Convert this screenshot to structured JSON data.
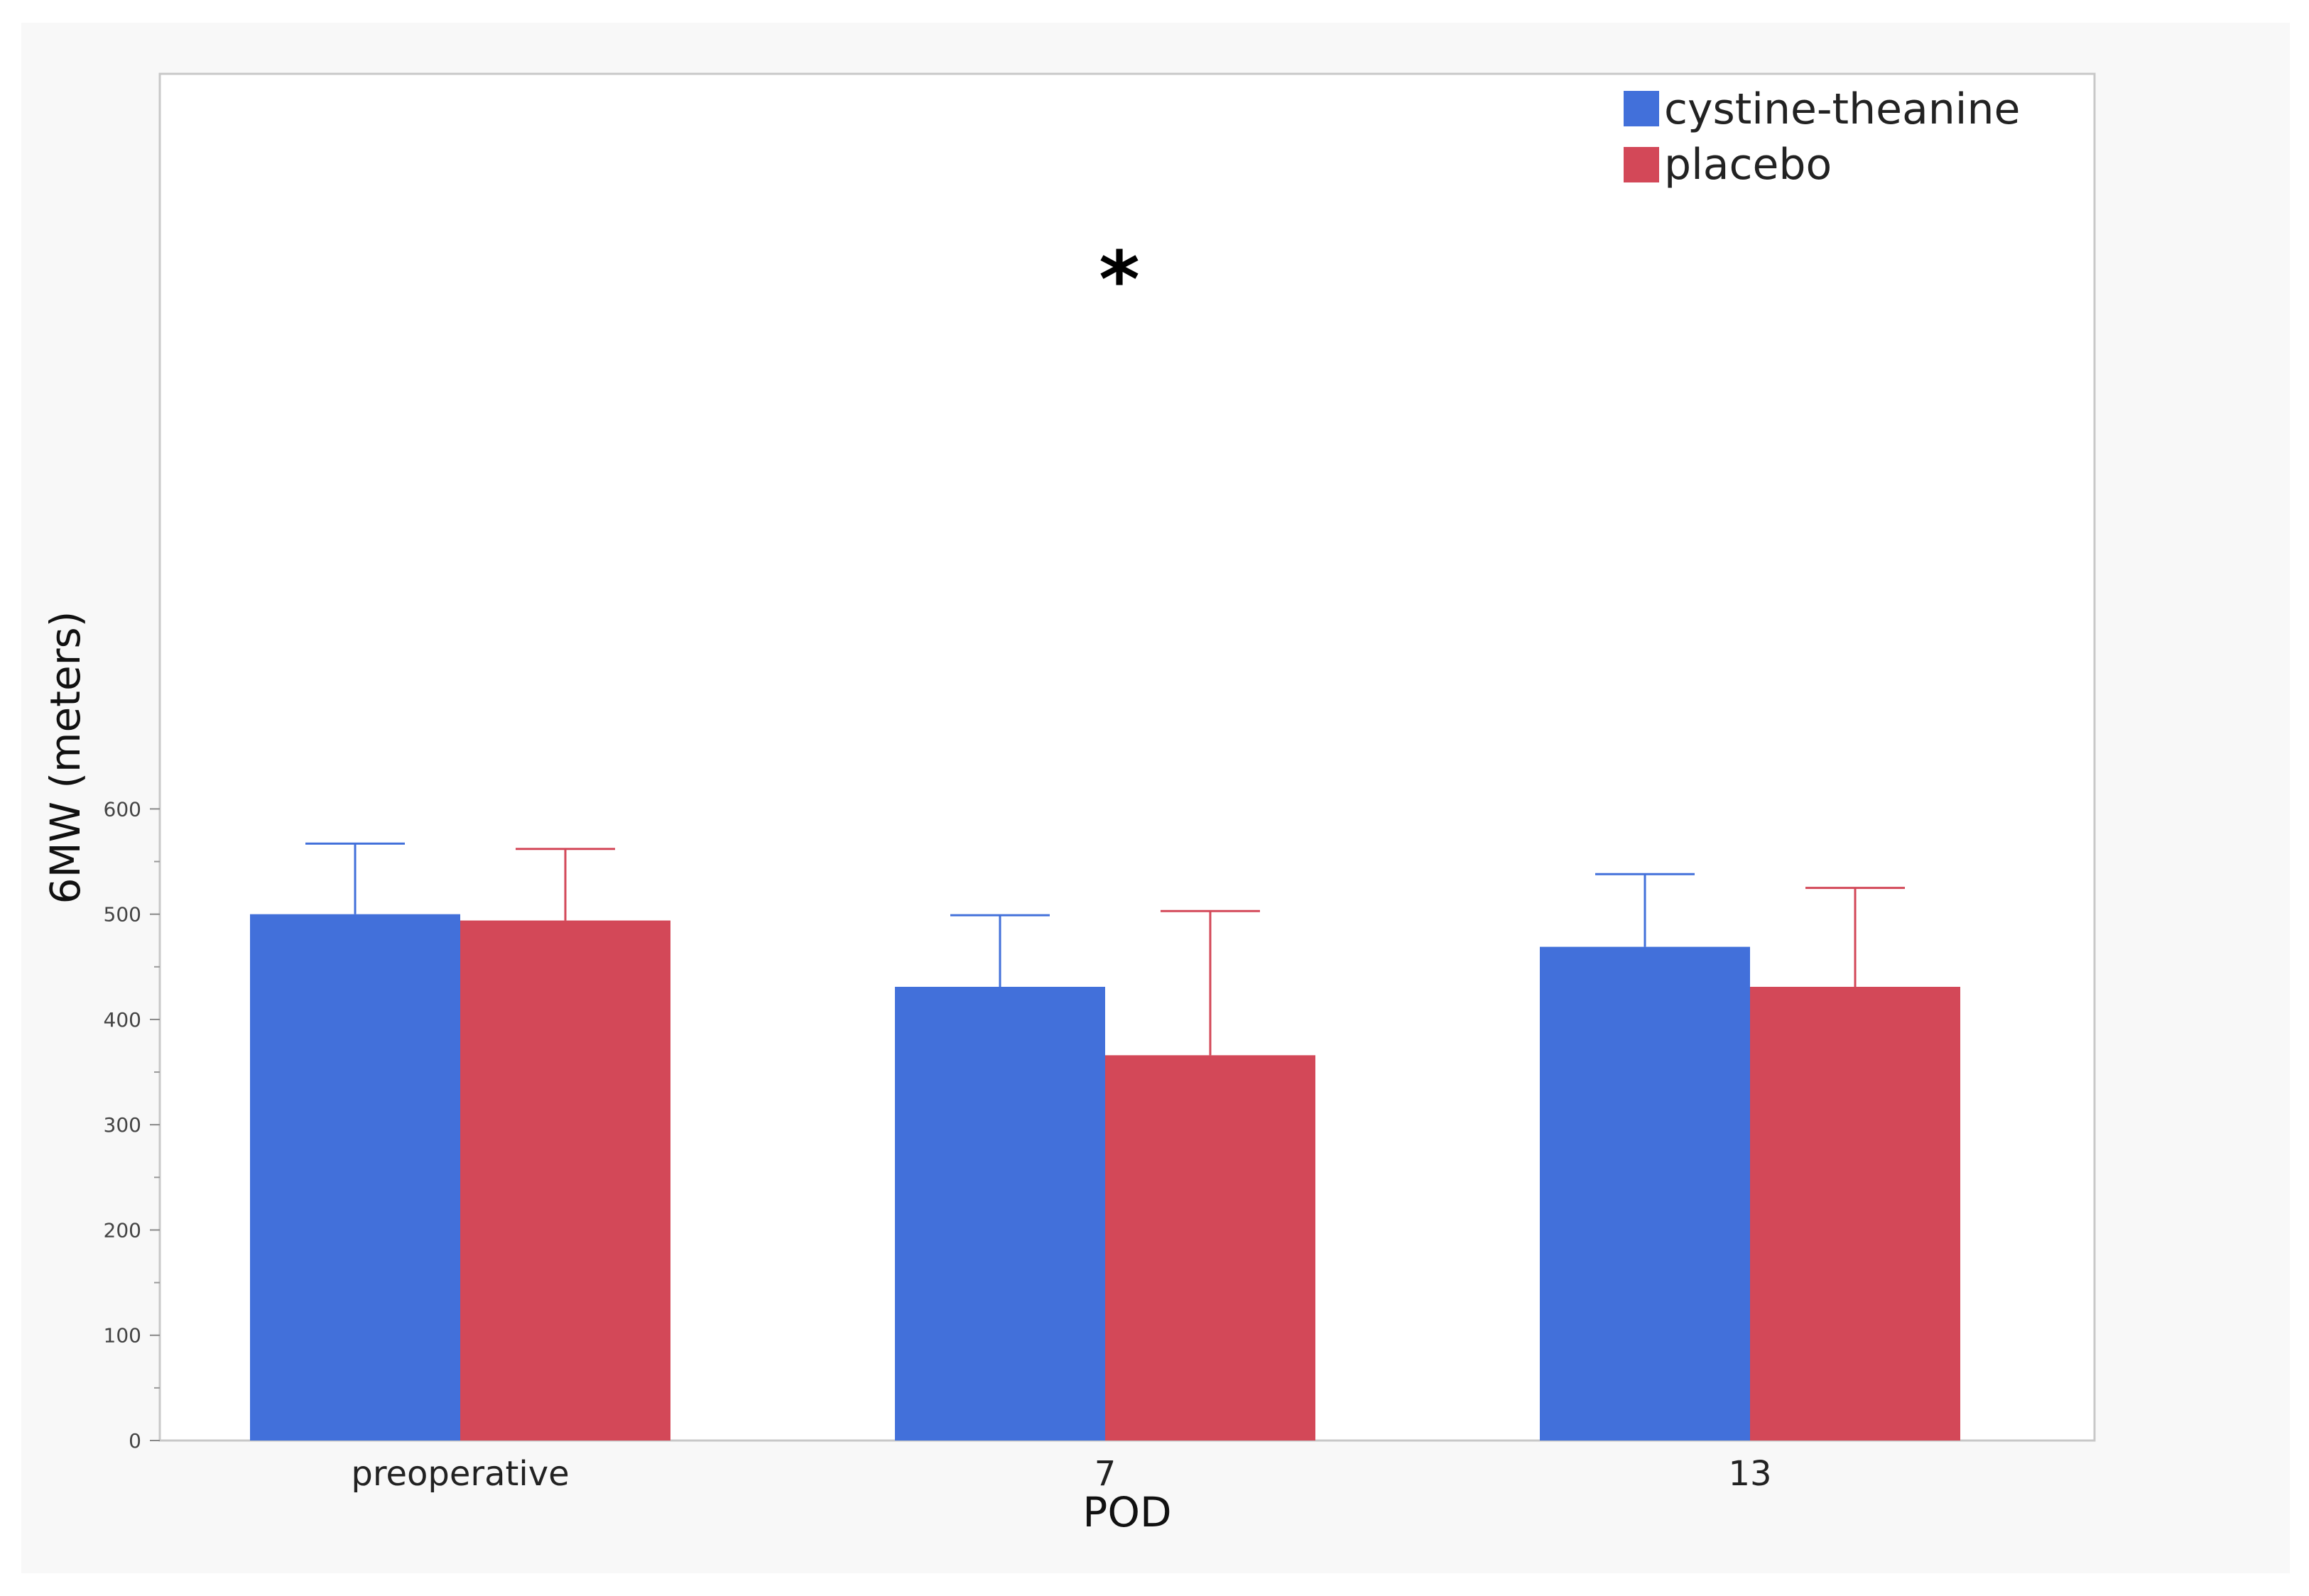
{
  "chart_data": {
    "type": "bar",
    "xlabel": "POD",
    "ylabel": "6MW (meters)",
    "categories": [
      "preoperative",
      "7",
      "13"
    ],
    "series": [
      {
        "name": "cystine-theanine",
        "color": "#4270da",
        "values": [
          500,
          431,
          469
        ],
        "error_upper": [
          567,
          499,
          538
        ]
      },
      {
        "name": "placebo",
        "color": "#d34858",
        "values": [
          494,
          366,
          431
        ],
        "error_upper": [
          562,
          503,
          525
        ]
      }
    ],
    "ylim": [
      0,
      650
    ],
    "yticks": [
      0,
      100,
      200,
      300,
      400,
      500,
      600
    ],
    "ytick_labels": [
      "0",
      "100",
      "200",
      "300",
      "400",
      "500",
      "600"
    ],
    "minor_tick_step": 50,
    "grid": false,
    "legend_position": "top-right",
    "annotations": [
      {
        "text": "*",
        "category": "7"
      }
    ]
  }
}
